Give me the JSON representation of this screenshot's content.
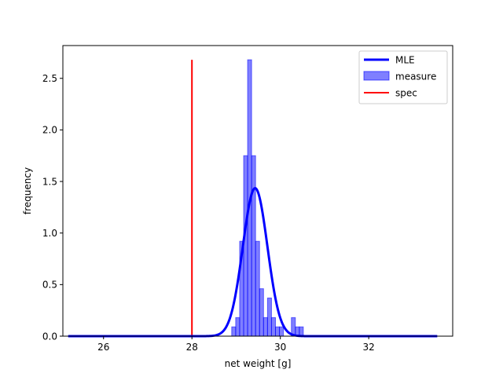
{
  "chart_data": {
    "type": "bar",
    "title": "",
    "xlabel": "net weight [g]",
    "ylabel": "frequency",
    "xlim": [
      25.08,
      33.9
    ],
    "ylim": [
      0,
      2.818
    ],
    "xticks": [
      "26",
      "28",
      "30",
      "32"
    ],
    "yticks": [
      "0.0",
      "0.5",
      "1.0",
      "1.5",
      "2.0",
      "2.5"
    ],
    "grid": false,
    "legend_position": "top-right",
    "legend": [
      "MLE",
      "measure",
      "spec"
    ],
    "series": [
      {
        "name": "measure",
        "kind": "histogram",
        "color": "#0000ff",
        "bin_edges": [
          28.9,
          28.99,
          29.08,
          29.17,
          29.26,
          29.35,
          29.44,
          29.53,
          29.62,
          29.71,
          29.8,
          29.89,
          29.98,
          30.07,
          30.16,
          30.25,
          30.34,
          30.43,
          30.52,
          30.61
        ],
        "values": [
          0.09,
          0.18,
          0.92,
          1.75,
          2.68,
          1.75,
          0.92,
          0.46,
          0.18,
          0.37,
          0.18,
          0.09,
          0.09,
          0.0,
          0.0,
          0.18,
          0.09,
          0.09,
          0.0
        ]
      },
      {
        "name": "MLE",
        "kind": "normal-pdf-line",
        "color": "#0000ff",
        "mean": 29.43,
        "std": 0.278,
        "x_range": [
          25.2,
          33.55
        ]
      },
      {
        "name": "spec",
        "kind": "vertical-line",
        "color": "#ff0000",
        "x": 28.0,
        "y_range": [
          0,
          2.68
        ]
      }
    ]
  }
}
